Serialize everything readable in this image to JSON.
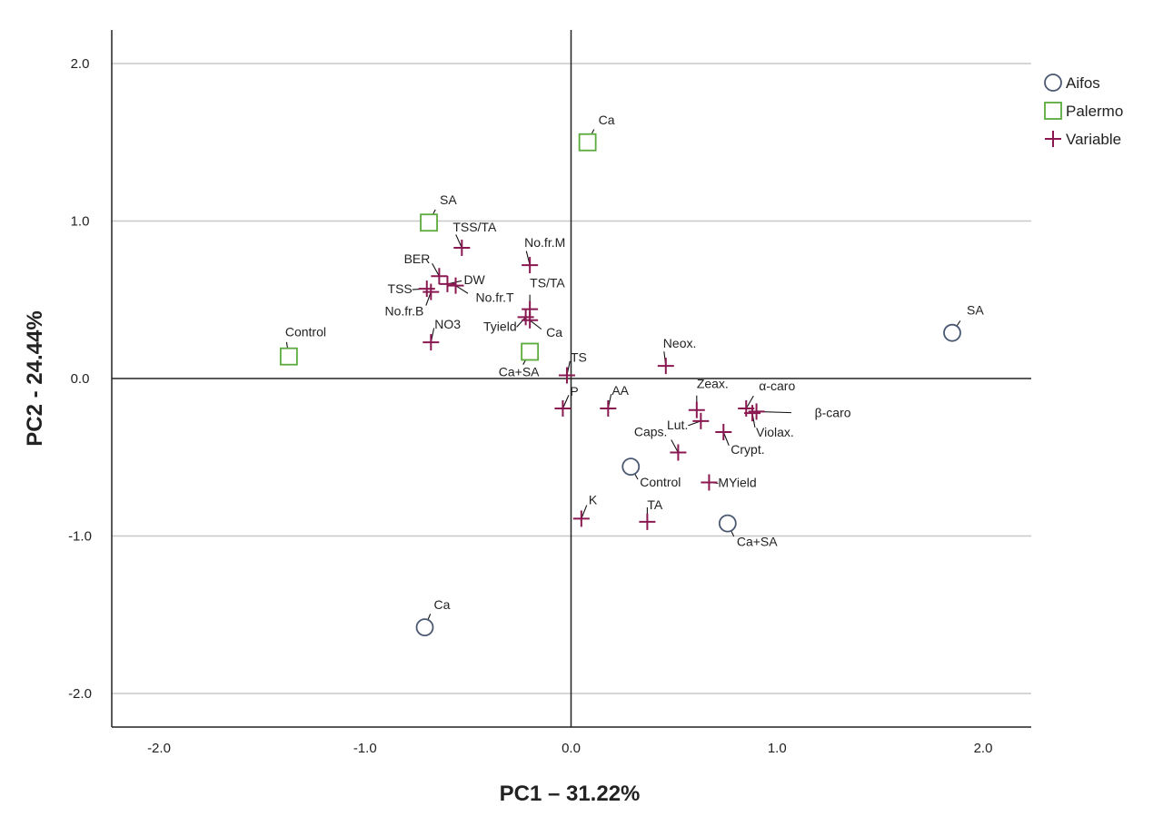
{
  "chart_data": {
    "type": "scatter",
    "title": "",
    "xlabel": "PC1 – 31.22%",
    "ylabel": "PC2 - 24.44%",
    "xlim": [
      -2.22,
      2.22
    ],
    "ylim": [
      -2.22,
      2.22
    ],
    "xticks": [
      -2.0,
      -1.0,
      0.0,
      1.0,
      2.0
    ],
    "yticks": [
      2.0,
      1.0,
      0.0,
      -1.0,
      -2.0
    ],
    "xtick_labels": [
      "-2.0",
      "-1.0",
      "0.0",
      "1.0",
      "2.0"
    ],
    "ytick_labels": [
      "2.0",
      "1.0",
      "0.0",
      "-1.0",
      "-2.0"
    ],
    "grid": "horizontal",
    "legend_position": "top-right",
    "legend": [
      {
        "name": "Aifos",
        "marker": "circle",
        "color": "#4a5872"
      },
      {
        "name": "Palermo",
        "marker": "square",
        "color": "#5aaa3c"
      },
      {
        "name": "Variable",
        "marker": "plus",
        "color": "#8a1850"
      }
    ],
    "series": [
      {
        "name": "Aifos",
        "points": [
          {
            "label": "SA",
            "x": 1.85,
            "y": 0.29
          },
          {
            "label": "Control",
            "x": 0.29,
            "y": -0.56
          },
          {
            "label": "Ca+SA",
            "x": 0.76,
            "y": -0.92
          },
          {
            "label": "Ca",
            "x": -0.71,
            "y": -1.58
          }
        ]
      },
      {
        "name": "Palermo",
        "points": [
          {
            "label": "Ca",
            "x": 0.08,
            "y": 1.5
          },
          {
            "label": "SA",
            "x": -0.69,
            "y": 0.99
          },
          {
            "label": "Control",
            "x": -1.37,
            "y": 0.14
          },
          {
            "label": "Ca+SA",
            "x": -0.2,
            "y": 0.17
          }
        ]
      },
      {
        "name": "Variable",
        "points": [
          {
            "label": "TSS/TA",
            "x": -0.53,
            "y": 0.83
          },
          {
            "label": "No.fr.M",
            "x": -0.2,
            "y": 0.72
          },
          {
            "label": "BER",
            "x": -0.64,
            "y": 0.65
          },
          {
            "label": "DW",
            "x": -0.6,
            "y": 0.6
          },
          {
            "label": "TSS",
            "x": -0.7,
            "y": 0.57
          },
          {
            "label": "No.fr.B",
            "x": -0.68,
            "y": 0.55
          },
          {
            "label": "No.fr.T",
            "x": -0.56,
            "y": 0.59
          },
          {
            "label": "TS/TA",
            "x": -0.2,
            "y": 0.44
          },
          {
            "label": "Tyield",
            "x": -0.22,
            "y": 0.39
          },
          {
            "label": "Ca",
            "x": -0.2,
            "y": 0.37
          },
          {
            "label": "NO3",
            "x": -0.68,
            "y": 0.23
          },
          {
            "label": "TS",
            "x": -0.02,
            "y": 0.02
          },
          {
            "label": "Neox.",
            "x": 0.46,
            "y": 0.08
          },
          {
            "label": "P",
            "x": -0.04,
            "y": -0.19
          },
          {
            "label": "AA",
            "x": 0.18,
            "y": -0.19
          },
          {
            "label": "Zeax.",
            "x": 0.61,
            "y": -0.2
          },
          {
            "label": "α-caro",
            "x": 0.85,
            "y": -0.19
          },
          {
            "label": "β-caro",
            "x": 0.9,
            "y": -0.21
          },
          {
            "label": "Violax.",
            "x": 0.88,
            "y": -0.22
          },
          {
            "label": "Lut.",
            "x": 0.63,
            "y": -0.27
          },
          {
            "label": "Crypt.",
            "x": 0.74,
            "y": -0.34
          },
          {
            "label": "Caps.",
            "x": 0.52,
            "y": -0.47
          },
          {
            "label": "MYield",
            "x": 0.67,
            "y": -0.66
          },
          {
            "label": "K",
            "x": 0.05,
            "y": -0.89
          },
          {
            "label": "TA",
            "x": 0.37,
            "y": -0.91
          }
        ]
      }
    ]
  }
}
